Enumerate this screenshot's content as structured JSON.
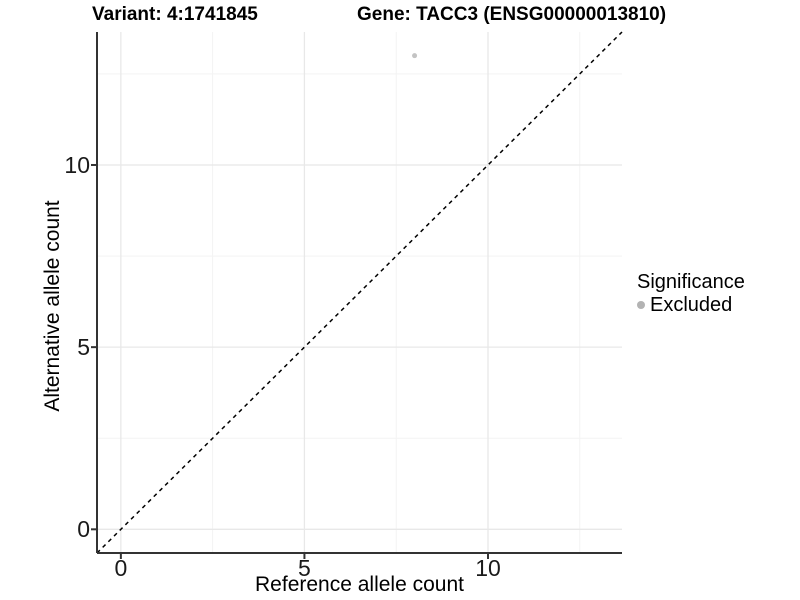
{
  "titles": {
    "variant": "Variant: 4:1741845",
    "gene": "Gene: TACC3 (ENSG00000013810)"
  },
  "legend": {
    "title": "Significance",
    "items": [
      {
        "label": "Excluded",
        "color": "#b3b3b3",
        "marker": "circle-icon"
      }
    ]
  },
  "chart_data": {
    "type": "scatter",
    "title_left": "Variant: 4:1741845",
    "title_right": "Gene: TACC3 (ENSG00000013810)",
    "xlabel": "Reference allele count",
    "ylabel": "Alternative allele count",
    "xlim": [
      -0.65,
      13.65
    ],
    "ylim": [
      -0.65,
      13.65
    ],
    "x_ticks": [
      0,
      5,
      10
    ],
    "y_ticks": [
      0,
      5,
      10
    ],
    "x_minor_ticks": [
      2.5,
      7.5,
      12.5
    ],
    "y_minor_ticks": [
      2.5,
      7.5,
      12.5
    ],
    "grid": "major+minor",
    "legend_position": "right",
    "series": [
      {
        "name": "Excluded",
        "color": "#c3c3c3",
        "points": [
          {
            "x": 8,
            "y": 13
          }
        ]
      }
    ],
    "reference_line": {
      "type": "identity y=x",
      "style": "dashed",
      "color": "#000000",
      "x1": -0.65,
      "y1": -0.65,
      "x2": 13.65,
      "y2": 13.65
    }
  },
  "colors": {
    "background": "#ffffff",
    "axis_line": "#333333",
    "tick_mark": "#333333",
    "grid_major": "#e8e8e8",
    "grid_minor": "#f3f3f3",
    "point": "#c3c3c3",
    "legend_key": "#b3b3b3",
    "text": "#000000"
  }
}
